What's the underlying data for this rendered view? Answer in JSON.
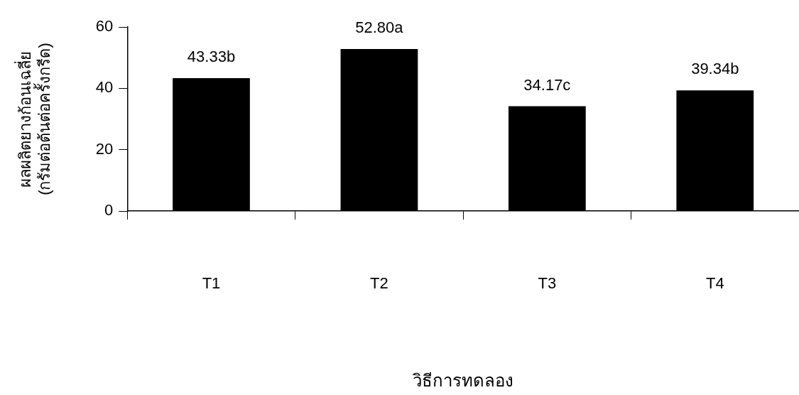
{
  "chart_data": {
    "type": "bar",
    "xlabel": "วิธีการทดลอง",
    "ylabel": "ผลผลิตยางก้อนเฉลี่ย\n(กรัมต่อต้นต่อครั้งกรีด)",
    "categories": [
      "T1",
      "T2",
      "T3",
      "T4"
    ],
    "values": [
      43.33,
      52.8,
      34.17,
      39.34
    ],
    "value_labels": [
      "43.33b",
      "52.80a",
      "34.17c",
      "39.34b"
    ],
    "color": "#000000",
    "ylim": [
      0,
      60
    ],
    "yticks": [
      0,
      20,
      40,
      60
    ],
    "grid": false,
    "legend": false
  }
}
